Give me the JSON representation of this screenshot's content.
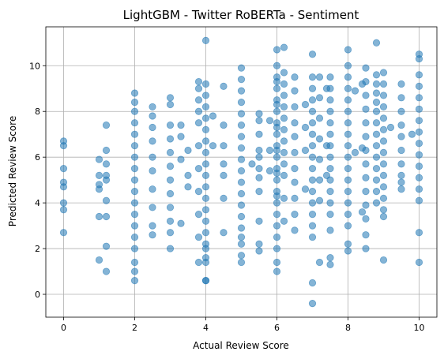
{
  "chart_data": {
    "type": "scatter",
    "title": "LightGBM - Twitter RoBERTa - Sentiment",
    "xlabel": "Actual Review Score",
    "ylabel": "Predicted Review Score",
    "xlim": [
      -0.5,
      10.5
    ],
    "ylim": [
      -1.0,
      11.7
    ],
    "xticks": [
      0,
      2,
      4,
      6,
      8,
      10
    ],
    "yticks": [
      0,
      2,
      4,
      6,
      8,
      10
    ],
    "grid": true,
    "marker_color": "#1f77b4",
    "marker_alpha": 0.55,
    "x": [
      0,
      0,
      0,
      0,
      0,
      0,
      0,
      0,
      1,
      1,
      1,
      1,
      1,
      1,
      1.2,
      1.2,
      1.2,
      1.2,
      1.2,
      1.2,
      1.2,
      1.2,
      1.2,
      2,
      2,
      2,
      2,
      2,
      2,
      2,
      2,
      2,
      2,
      2,
      2,
      2,
      2,
      2,
      2,
      2,
      2,
      2.5,
      2.5,
      2.5,
      2.5,
      2.5,
      2.5,
      2.5,
      2.5,
      2.5,
      2.5,
      3,
      3,
      3,
      3,
      3,
      3,
      3,
      3,
      3,
      3,
      3,
      3,
      3.3,
      3.3,
      3.3,
      3.3,
      3.5,
      3.5,
      3.5,
      3.8,
      3.8,
      3.8,
      3.8,
      3.8,
      3.8,
      3.8,
      3.8,
      3.8,
      3.8,
      3.8,
      4,
      4,
      4,
      4,
      4,
      4,
      4,
      4,
      4,
      4,
      4,
      4,
      4,
      4,
      4,
      4,
      4,
      4,
      4,
      4,
      4,
      4.2,
      4.2,
      4.5,
      4.5,
      4.5,
      4.5,
      4.5,
      4.5,
      4.5,
      5,
      5,
      5,
      5,
      5,
      5,
      5,
      5,
      5,
      5,
      5,
      5,
      5,
      5,
      5,
      5,
      5,
      5,
      5,
      5.3,
      5.5,
      5.5,
      5.5,
      5.5,
      5.5,
      5.5,
      5.5,
      5.5,
      5.5,
      5.5,
      5.5,
      5.8,
      5.8,
      5.8,
      6,
      6,
      6,
      6,
      6,
      6,
      6,
      6,
      6,
      6,
      6,
      6,
      6,
      6,
      6,
      6,
      6,
      6,
      6,
      6,
      6,
      6,
      6,
      6,
      6,
      6,
      6.2,
      6.2,
      6.2,
      6.2,
      6.2,
      6.2,
      6.2,
      6.2,
      6.2,
      6.2,
      6.2,
      6.2,
      6.2,
      6.5,
      6.5,
      6.5,
      6.5,
      6.5,
      6.5,
      6.5,
      6.5,
      6.5,
      6.5,
      6.5,
      6.8,
      6.8,
      6.8,
      6.8,
      7,
      7,
      7,
      7,
      7,
      7,
      7,
      7,
      7,
      7,
      7,
      7,
      7,
      7,
      7,
      7,
      7,
      7,
      7.2,
      7.2,
      7.2,
      7.2,
      7.2,
      7.2,
      7.2,
      7.2,
      7.4,
      7.4,
      7.4,
      7.5,
      7.5,
      7.5,
      7.5,
      7.5,
      7.5,
      7.5,
      7.5,
      7.5,
      7.5,
      7.5,
      7.5,
      7.5,
      7.5,
      7.5,
      7.5,
      8,
      8,
      8,
      8,
      8,
      8,
      8,
      8,
      8,
      8,
      8,
      8,
      8,
      8,
      8,
      8,
      8,
      8,
      8.2,
      8.2,
      8.4,
      8.4,
      8.4,
      8.5,
      8.5,
      8.5,
      8.5,
      8.5,
      8.5,
      8.5,
      8.5,
      8.5,
      8.5,
      8.5,
      8.5,
      8.5,
      8.5,
      8.8,
      8.8,
      8.8,
      8.8,
      8.8,
      8.8,
      8.8,
      8.8,
      8.8,
      8.8,
      8.8,
      8.8,
      8.8,
      8.8,
      9,
      9,
      9,
      9,
      9,
      9,
      9,
      9,
      9,
      9,
      9,
      9,
      9,
      9,
      9,
      9.2,
      9.5,
      9.5,
      9.5,
      9.5,
      9.5,
      9.5,
      9.5,
      9.5,
      9.5,
      9.5,
      9.8,
      10,
      10,
      10,
      10,
      10,
      10,
      10,
      10,
      10,
      10,
      10,
      10,
      10,
      10,
      10,
      10
    ],
    "y": [
      6.7,
      6.5,
      5.5,
      4.9,
      4.7,
      4.0,
      3.7,
      2.7,
      5.9,
      5.2,
      4.8,
      4.6,
      3.4,
      1.5,
      7.4,
      6.3,
      5.7,
      5.0,
      4.1,
      3.4,
      2.1,
      1.0,
      5.2,
      8.8,
      8.4,
      8.0,
      7.5,
      7.0,
      6.5,
      6.0,
      5.5,
      5.0,
      4.5,
      4.0,
      3.5,
      3.0,
      2.5,
      2.0,
      1.0,
      0.6,
      1.4,
      8.2,
      7.8,
      7.3,
      6.7,
      6.0,
      5.4,
      4.6,
      3.8,
      3.0,
      2.6,
      8.6,
      8.3,
      7.4,
      6.8,
      6.2,
      5.6,
      5.0,
      4.4,
      3.8,
      3.2,
      2.7,
      2.0,
      7.4,
      6.9,
      5.9,
      3.1,
      6.3,
      5.2,
      4.7,
      9.3,
      9.0,
      8.5,
      8.0,
      7.5,
      6.5,
      5.5,
      4.5,
      3.5,
      2.5,
      1.4,
      11.1,
      9.2,
      8.7,
      8.2,
      7.7,
      7.2,
      6.7,
      6.2,
      5.7,
      5.2,
      4.7,
      4.2,
      3.7,
      3.2,
      2.7,
      2.2,
      1.6,
      0.6,
      0.6,
      2.0,
      1.4,
      6.5,
      7.8,
      9.1,
      7.4,
      6.5,
      5.7,
      5.2,
      4.2,
      2.7,
      9.9,
      9.4,
      8.9,
      8.4,
      7.9,
      7.4,
      6.9,
      6.4,
      5.9,
      5.4,
      4.9,
      4.4,
      3.9,
      3.4,
      2.9,
      2.5,
      2.2,
      1.7,
      1.4,
      5.7,
      7.9,
      7.6,
      7.0,
      6.3,
      6.0,
      5.5,
      5.1,
      4.5,
      3.2,
      2.2,
      1.9,
      6.3,
      5.4,
      7.6,
      10.7,
      10.0,
      9.5,
      9.0,
      8.5,
      8.0,
      7.5,
      7.0,
      6.5,
      6.0,
      5.5,
      5.0,
      4.5,
      4.0,
      3.5,
      3.0,
      2.5,
      2.0,
      1.4,
      1.0,
      9.3,
      8.3,
      7.3,
      6.3,
      5.3,
      4.3,
      10.8,
      9.7,
      9.2,
      8.7,
      8.2,
      7.7,
      7.2,
      6.7,
      6.2,
      5.7,
      5.2,
      4.2,
      3.2,
      9.5,
      8.9,
      8.2,
      7.5,
      6.9,
      6.2,
      5.5,
      4.9,
      4.2,
      3.5,
      2.8,
      8.3,
      7.3,
      6.3,
      4.6,
      10.5,
      9.5,
      9.0,
      8.5,
      8.0,
      7.5,
      7.0,
      6.5,
      6.0,
      5.5,
      5.0,
      4.5,
      4.0,
      3.5,
      3.0,
      2.5,
      0.5,
      -0.4,
      9.5,
      8.6,
      7.7,
      6.8,
      5.9,
      5.0,
      4.1,
      1.4,
      9.0,
      6.5,
      5.2,
      9.5,
      9.0,
      8.5,
      8.0,
      7.5,
      7.0,
      6.5,
      6.0,
      5.5,
      5.0,
      4.5,
      4.0,
      3.5,
      2.8,
      1.6,
      1.3,
      10.7,
      10.0,
      9.5,
      9.0,
      8.5,
      8.0,
      7.5,
      7.0,
      6.5,
      6.0,
      5.5,
      5.0,
      4.5,
      4.0,
      3.5,
      3.0,
      2.2,
      1.9,
      6.2,
      8.9,
      9.2,
      6.4,
      3.6,
      9.9,
      9.3,
      8.7,
      8.1,
      7.5,
      6.9,
      6.3,
      5.7,
      5.1,
      4.5,
      3.9,
      3.3,
      2.6,
      2.0,
      11.0,
      9.6,
      9.2,
      8.8,
      8.4,
      8.0,
      7.5,
      7.0,
      6.5,
      6.0,
      5.5,
      5.0,
      4.5,
      4.0,
      9.7,
      9.2,
      8.7,
      8.2,
      7.7,
      7.2,
      6.7,
      6.2,
      5.7,
      5.2,
      4.7,
      4.2,
      3.7,
      3.4,
      1.5,
      7.3,
      9.2,
      8.6,
      8.0,
      7.4,
      6.9,
      6.3,
      5.7,
      5.2,
      4.9,
      4.6,
      7.0,
      10.5,
      10.3,
      9.6,
      9.1,
      8.6,
      8.1,
      7.6,
      7.1,
      6.6,
      6.1,
      5.6,
      5.1,
      4.6,
      4.1,
      2.7,
      1.4
    ]
  }
}
